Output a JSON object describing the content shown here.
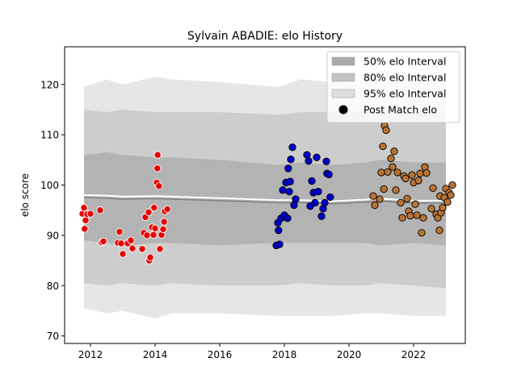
{
  "chart_data": {
    "type": "scatter",
    "title": "Sylvain ABADIE: elo History",
    "xlabel": "",
    "ylabel": "elo score",
    "xlim": [
      2011.2,
      2023.6
    ],
    "ylim": [
      68.5,
      127.5
    ],
    "xticks": [
      2012,
      2014,
      2016,
      2018,
      2020,
      2022
    ],
    "yticks": [
      70,
      80,
      90,
      100,
      110,
      120
    ],
    "grid": false,
    "legend_position": "top-right",
    "legend": [
      {
        "label": "50% elo Interval",
        "kind": "band",
        "color": "#aaaaaa"
      },
      {
        "label": "80% elo Interval",
        "kind": "band",
        "color": "#c4c4c4"
      },
      {
        "label": "95% elo Interval",
        "kind": "band",
        "color": "#dedede"
      },
      {
        "label": "Post Match elo",
        "kind": "marker",
        "color": "#000000"
      }
    ],
    "bands": {
      "x": [
        2011.8,
        2012.5,
        2013.0,
        2014.0,
        2014.5,
        2016.0,
        2017.8,
        2018.5,
        2019.5,
        2020.5,
        2021.0,
        2022.0,
        2023.0
      ],
      "b95_upper": [
        119.5,
        121.0,
        120.0,
        121.5,
        121.0,
        120.5,
        119.5,
        121.0,
        120.5,
        120.0,
        123.0,
        122.0,
        121.5
      ],
      "b95_lower": [
        75.5,
        74.5,
        75.0,
        73.5,
        74.5,
        74.5,
        74.0,
        74.0,
        74.0,
        74.5,
        74.5,
        74.0,
        74.0
      ],
      "b80_upper": [
        115.0,
        114.5,
        115.0,
        114.5,
        114.5,
        114.5,
        114.0,
        114.5,
        114.5,
        114.5,
        115.0,
        114.5,
        114.5
      ],
      "b80_lower": [
        80.5,
        80.0,
        80.5,
        80.0,
        80.5,
        80.0,
        80.0,
        80.5,
        80.0,
        80.0,
        80.5,
        80.0,
        79.5
      ],
      "b50_upper": [
        106.0,
        106.5,
        106.0,
        105.5,
        105.5,
        105.0,
        104.0,
        104.5,
        104.0,
        104.5,
        105.0,
        104.5,
        104.5
      ],
      "b50_lower": [
        89.0,
        88.5,
        88.0,
        88.5,
        88.5,
        88.0,
        88.5,
        88.5,
        88.5,
        88.5,
        88.0,
        88.5,
        88.0
      ],
      "mean": [
        97.5,
        97.4,
        97.2,
        97.3,
        97.2,
        96.9,
        96.5,
        96.5,
        96.3,
        96.6,
        96.8,
        96.4,
        96.4
      ]
    },
    "series": [
      {
        "color": "#e60000",
        "edge": "#ffffff",
        "points": [
          [
            2011.75,
            94.3
          ],
          [
            2011.8,
            95.5
          ],
          [
            2011.82,
            91.3
          ],
          [
            2011.85,
            93.0
          ],
          [
            2011.9,
            94.2
          ],
          [
            2012.0,
            94.3
          ],
          [
            2012.3,
            95.0
          ],
          [
            2012.35,
            88.6
          ],
          [
            2012.4,
            88.8
          ],
          [
            2012.85,
            88.5
          ],
          [
            2012.9,
            90.7
          ],
          [
            2012.95,
            88.4
          ],
          [
            2013.0,
            86.3
          ],
          [
            2013.15,
            88.4
          ],
          [
            2013.25,
            89.0
          ],
          [
            2013.3,
            87.4
          ],
          [
            2013.6,
            87.3
          ],
          [
            2013.65,
            90.5
          ],
          [
            2013.7,
            93.6
          ],
          [
            2013.75,
            90.0
          ],
          [
            2013.8,
            94.6
          ],
          [
            2013.82,
            85.0
          ],
          [
            2013.85,
            85.6
          ],
          [
            2013.9,
            91.6
          ],
          [
            2013.95,
            90.1
          ],
          [
            2013.97,
            95.5
          ],
          [
            2014.0,
            91.4
          ],
          [
            2014.05,
            100.5
          ],
          [
            2014.07,
            103.3
          ],
          [
            2014.08,
            106.0
          ],
          [
            2014.12,
            99.8
          ],
          [
            2014.15,
            87.3
          ],
          [
            2014.2,
            90.1
          ],
          [
            2014.25,
            91.2
          ],
          [
            2014.28,
            92.7
          ],
          [
            2014.3,
            94.8
          ],
          [
            2014.38,
            95.2
          ]
        ]
      },
      {
        "color": "#0000cc",
        "edge": "#000000",
        "points": [
          [
            2017.75,
            88.0
          ],
          [
            2017.8,
            92.5
          ],
          [
            2017.82,
            91.0
          ],
          [
            2017.85,
            88.2
          ],
          [
            2017.9,
            93.4
          ],
          [
            2017.95,
            99.0
          ],
          [
            2018.0,
            94.0
          ],
          [
            2018.05,
            100.5
          ],
          [
            2018.1,
            93.4
          ],
          [
            2018.12,
            103.3
          ],
          [
            2018.15,
            98.7
          ],
          [
            2018.18,
            100.7
          ],
          [
            2018.2,
            105.1
          ],
          [
            2018.25,
            107.5
          ],
          [
            2018.3,
            96.0
          ],
          [
            2018.35,
            97.2
          ],
          [
            2018.7,
            106.0
          ],
          [
            2018.75,
            104.8
          ],
          [
            2018.8,
            95.8
          ],
          [
            2018.85,
            100.8
          ],
          [
            2018.9,
            98.5
          ],
          [
            2018.95,
            96.5
          ],
          [
            2019.0,
            105.5
          ],
          [
            2019.05,
            98.7
          ],
          [
            2019.15,
            93.8
          ],
          [
            2019.2,
            95.3
          ],
          [
            2019.25,
            96.5
          ],
          [
            2019.3,
            104.7
          ],
          [
            2019.32,
            102.3
          ],
          [
            2019.38,
            102.1
          ],
          [
            2019.42,
            97.6
          ]
        ]
      },
      {
        "color": "#b87333",
        "edge": "#000000",
        "points": [
          [
            2020.75,
            97.8
          ],
          [
            2020.8,
            96.0
          ],
          [
            2020.95,
            97.2
          ],
          [
            2021.0,
            102.5
          ],
          [
            2021.05,
            107.7
          ],
          [
            2021.08,
            99.2
          ],
          [
            2021.1,
            111.8
          ],
          [
            2021.15,
            110.9
          ],
          [
            2021.2,
            102.6
          ],
          [
            2021.3,
            105.3
          ],
          [
            2021.35,
            103.6
          ],
          [
            2021.4,
            106.7
          ],
          [
            2021.45,
            99.0
          ],
          [
            2021.5,
            102.5
          ],
          [
            2021.6,
            96.5
          ],
          [
            2021.65,
            93.5
          ],
          [
            2021.7,
            101.8
          ],
          [
            2021.75,
            101.3
          ],
          [
            2021.8,
            97.3
          ],
          [
            2021.85,
            94.8
          ],
          [
            2021.9,
            93.9
          ],
          [
            2021.95,
            102.0
          ],
          [
            2022.0,
            100.5
          ],
          [
            2022.05,
            96.2
          ],
          [
            2022.1,
            94.0
          ],
          [
            2022.15,
            100.9
          ],
          [
            2022.2,
            102.3
          ],
          [
            2022.25,
            90.5
          ],
          [
            2022.3,
            93.5
          ],
          [
            2022.35,
            103.6
          ],
          [
            2022.4,
            102.4
          ],
          [
            2022.55,
            95.3
          ],
          [
            2022.6,
            99.4
          ],
          [
            2022.7,
            94.2
          ],
          [
            2022.75,
            93.5
          ],
          [
            2022.8,
            91.0
          ],
          [
            2022.82,
            97.8
          ],
          [
            2022.85,
            94.5
          ],
          [
            2022.9,
            95.5
          ],
          [
            2022.95,
            97.5
          ],
          [
            2023.0,
            99.3
          ],
          [
            2023.05,
            96.6
          ],
          [
            2023.1,
            98.5
          ],
          [
            2023.15,
            98.0
          ],
          [
            2023.2,
            100.0
          ]
        ]
      }
    ]
  }
}
